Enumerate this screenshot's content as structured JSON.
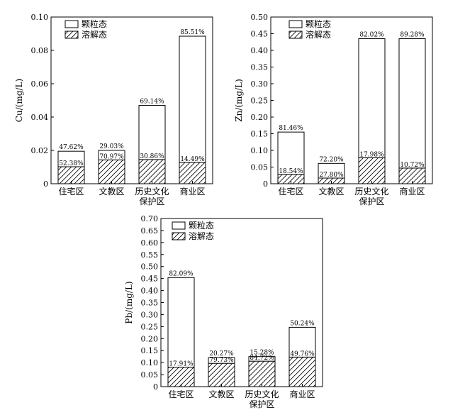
{
  "legend": {
    "particulate": "颗粒态",
    "dissolved": "溶解态"
  },
  "chart_data": [
    {
      "type": "bar",
      "stacked": true,
      "ylabel": "Cu/(mg/L)",
      "ylim": [
        0,
        0.1
      ],
      "yticks": [
        "0",
        "0.02",
        "0.04",
        "0.06",
        "0.08",
        "0.10"
      ],
      "categories": [
        [
          "住宅区"
        ],
        [
          "文教区"
        ],
        [
          "历史文化",
          "保护区"
        ],
        [
          "商业区"
        ]
      ],
      "legend_position": "top-left",
      "series": [
        {
          "name": "溶解态",
          "values": [
            0.0102,
            0.0143,
            0.0145,
            0.0128
          ],
          "labels": [
            "52.38%",
            "70.97%",
            "30.86%",
            "14.49%"
          ]
        },
        {
          "name": "颗粒态",
          "values": [
            0.0093,
            0.0057,
            0.0325,
            0.0757
          ],
          "labels": [
            "47.62%",
            "29.03%",
            "69.14%",
            "85.51%"
          ]
        }
      ]
    },
    {
      "type": "bar",
      "stacked": true,
      "ylabel": "Zn/(mg/L)",
      "ylim": [
        0,
        0.5
      ],
      "yticks": [
        "0",
        "0.05",
        "0.10",
        "0.15",
        "0.20",
        "0.25",
        "0.30",
        "0.35",
        "0.40",
        "0.45",
        "0.50"
      ],
      "categories": [
        [
          "住宅区"
        ],
        [
          "文教区"
        ],
        [
          "历史文化",
          "保护区"
        ],
        [
          "商业区"
        ]
      ],
      "legend_position": "top-right",
      "series": [
        {
          "name": "溶解态",
          "values": [
            0.028,
            0.017,
            0.078,
            0.047
          ],
          "labels": [
            "18.54%",
            "27.80%",
            "17.98%",
            "10.72%"
          ]
        },
        {
          "name": "颗粒态",
          "values": [
            0.127,
            0.044,
            0.357,
            0.388
          ],
          "labels": [
            "81.46%",
            "72.20%",
            "82.02%",
            "89.28%"
          ]
        }
      ]
    },
    {
      "type": "bar",
      "stacked": true,
      "ylabel": "Pb/(mg/L)",
      "ylim": [
        0,
        0.7
      ],
      "yticks": [
        "0",
        "0.05",
        "0.10",
        "0.15",
        "0.20",
        "0.25",
        "0.30",
        "0.35",
        "0.40",
        "0.45",
        "0.50",
        "0.55",
        "0.60",
        "0.65",
        "0.70"
      ],
      "categories": [
        [
          "住宅区"
        ],
        [
          "文教区"
        ],
        [
          "历史文化",
          "保护区"
        ],
        [
          "商业区"
        ]
      ],
      "legend_position": "top-left",
      "series": [
        {
          "name": "溶解态",
          "values": [
            0.081,
            0.097,
            0.106,
            0.123
          ],
          "labels": [
            "17.91%",
            "79.73%",
            "84.72%",
            "49.76%"
          ]
        },
        {
          "name": "颗粒态",
          "values": [
            0.373,
            0.024,
            0.019,
            0.124
          ],
          "labels": [
            "82.09%",
            "20.27%",
            "15.28%",
            "50.24%"
          ]
        }
      ]
    }
  ]
}
